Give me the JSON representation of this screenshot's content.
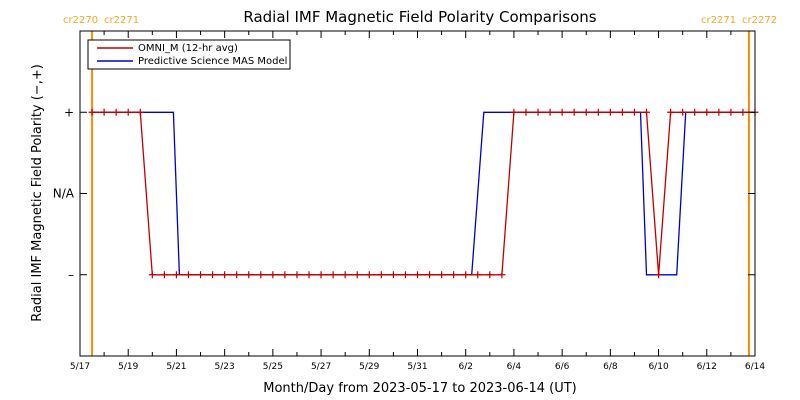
{
  "chart_data": {
    "type": "line",
    "title": "Radial IMF Magnetic Field Polarity Comparisons",
    "xlabel": "Month/Day from 2023-05-17 to 2023-06-14 (UT)",
    "ylabel": "Radial IMF Magnetic Field Polarity (−,+)",
    "xlim": [
      "2023-05-17",
      "2023-06-14"
    ],
    "x_ticks": [
      "5/17",
      "5/19",
      "5/21",
      "5/23",
      "5/25",
      "5/27",
      "5/29",
      "5/31",
      "6/2",
      "6/4",
      "6/6",
      "6/8",
      "6/10",
      "6/12",
      "6/14"
    ],
    "y_ticks": [
      "+",
      "N/A",
      "–"
    ],
    "y_levels": {
      "+": 1,
      "N/A": 0,
      "–": -1
    },
    "ylim": [
      -2,
      2
    ],
    "carrington_markers": [
      {
        "date": "2023-05-17 12:00",
        "left_label": "cr2270",
        "right_label": "cr2271"
      },
      {
        "date": "2023-06-13 18:00",
        "left_label": "cr2271",
        "right_label": "cr2272"
      }
    ],
    "legend": {
      "placement": "top-left"
    },
    "series": [
      {
        "name": "OMNI_M (12-hr avg)",
        "color": "#c00000",
        "marker": "+",
        "x": [
          "2023-05-17 12:00",
          "2023-05-18 00:00",
          "2023-05-18 12:00",
          "2023-05-19 00:00",
          "2023-05-19 12:00",
          "2023-05-20 00:00",
          "2023-05-20 12:00",
          "2023-05-21 00:00",
          "2023-05-21 12:00",
          "2023-05-22 00:00",
          "2023-05-22 12:00",
          "2023-05-23 00:00",
          "2023-05-23 12:00",
          "2023-05-24 00:00",
          "2023-05-24 12:00",
          "2023-05-25 00:00",
          "2023-05-25 12:00",
          "2023-05-26 00:00",
          "2023-05-26 12:00",
          "2023-05-27 00:00",
          "2023-05-27 12:00",
          "2023-05-28 00:00",
          "2023-05-28 12:00",
          "2023-05-29 00:00",
          "2023-05-29 12:00",
          "2023-05-30 00:00",
          "2023-05-30 12:00",
          "2023-05-31 00:00",
          "2023-05-31 12:00",
          "2023-06-01 00:00",
          "2023-06-01 12:00",
          "2023-06-02 00:00",
          "2023-06-02 12:00",
          "2023-06-03 00:00",
          "2023-06-03 12:00",
          "2023-06-04 00:00",
          "2023-06-04 12:00",
          "2023-06-05 00:00",
          "2023-06-05 12:00",
          "2023-06-06 00:00",
          "2023-06-06 12:00",
          "2023-06-07 00:00",
          "2023-06-07 12:00",
          "2023-06-08 00:00",
          "2023-06-08 12:00",
          "2023-06-09 00:00",
          "2023-06-09 12:00",
          "2023-06-10 00:00",
          "2023-06-10 12:00",
          "2023-06-11 00:00",
          "2023-06-11 12:00",
          "2023-06-12 00:00",
          "2023-06-12 12:00",
          "2023-06-13 00:00",
          "2023-06-13 12:00",
          "2023-06-14 00:00"
        ],
        "y": [
          1,
          1,
          1,
          1,
          1,
          -1,
          -1,
          -1,
          -1,
          -1,
          -1,
          -1,
          -1,
          -1,
          -1,
          -1,
          -1,
          -1,
          -1,
          -1,
          -1,
          -1,
          -1,
          -1,
          -1,
          -1,
          -1,
          -1,
          -1,
          -1,
          -1,
          -1,
          -1,
          -1,
          -1,
          1,
          1,
          1,
          1,
          1,
          1,
          1,
          1,
          1,
          1,
          1,
          1,
          -1,
          1,
          1,
          1,
          1,
          1,
          1,
          1,
          1
        ]
      },
      {
        "name": "Predictive Science MAS Model",
        "color": "#0000cc",
        "marker": "none",
        "x": [
          "2023-05-17 12:00",
          "2023-05-20 21:00",
          "2023-05-21 03:00",
          "2023-06-02 06:00",
          "2023-06-02 18:00",
          "2023-06-09 06:00",
          "2023-06-09 12:00",
          "2023-06-10 18:00",
          "2023-06-11 03:00",
          "2023-06-14 00:00"
        ],
        "y": [
          1,
          1,
          -1,
          -1,
          1,
          1,
          -1,
          -1,
          1,
          1
        ]
      }
    ]
  }
}
